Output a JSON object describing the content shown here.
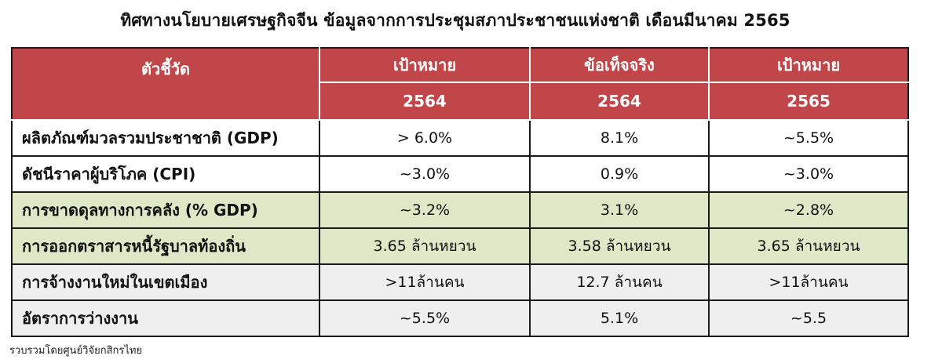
{
  "title": "ทิศทางนโยบายเศรษฐกิจจีน ข้อมูลจากการประชุมสภาประชาชนแห่งชาติ เดือนมีนาคม 2565",
  "table": {
    "header_indicator": "ตัวชี้วัด",
    "header_top": [
      "เป้าหมาย",
      "ข้อเท็จจริง",
      "เป้าหมาย"
    ],
    "header_years": [
      "2564",
      "2564",
      "2565"
    ],
    "rows": [
      {
        "label": "ผลิตภัณฑ์มวลรวมประชาชาติ (GDP)",
        "values": [
          "> 6.0%",
          "8.1%",
          "~5.5%"
        ]
      },
      {
        "label": "ดัชนีราคาผู้บริโภค (CPI)",
        "values": [
          "~3.0%",
          "0.9%",
          "~3.0%"
        ]
      },
      {
        "label": "การขาดดุลทางการคลัง (% GDP)",
        "values": [
          "~3.2%",
          "3.1%",
          "~2.8%"
        ]
      },
      {
        "label": "การออกตราสารหนี้รัฐบาลท้องถิ่น",
        "values": [
          "3.65 ล้านหยวน",
          "3.58 ล้านหยวน",
          "3.65 ล้านหยวน"
        ]
      },
      {
        "label": "การจ้างงานใหม่ในเขตเมือง",
        "values": [
          ">11ล้านคน",
          "12.7 ล้านคน",
          ">11ล้านคน"
        ]
      },
      {
        "label": "อัตราการว่างงาน",
        "values": [
          "~5.5%",
          "5.1%",
          "~5.5"
        ]
      }
    ]
  },
  "source": "รวบรวมโดยศูนย์วิจัยกสิกรไทย",
  "colors": {
    "header_bg": "#c1464a",
    "green_row": "#dfe8c6",
    "gray_row": "#efefef"
  }
}
